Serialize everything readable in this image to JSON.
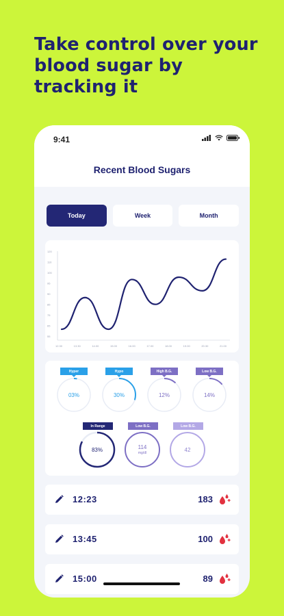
{
  "headline": "Take control over your blood sugar by tracking it",
  "status_bar": {
    "time": "9:41"
  },
  "nav": {
    "title": "Recent Blood Sugars"
  },
  "tabs": [
    {
      "label": "Today",
      "active": true
    },
    {
      "label": "Week",
      "active": false
    },
    {
      "label": "Month",
      "active": false
    }
  ],
  "chart_data": {
    "type": "line",
    "y_ticks": [
      "120",
      "110",
      "100",
      "95",
      "90",
      "85",
      "75",
      "65",
      "55"
    ],
    "x_ticks": [
      "12.30",
      "13.30",
      "14.00",
      "15.00",
      "16.00",
      "17.00",
      "18.00",
      "19.00",
      "20.30",
      "21.00"
    ],
    "series": [
      {
        "values": [
          56,
          84,
          56,
          100,
          78,
          102,
          90,
          118
        ],
        "color": "#1f2270"
      }
    ]
  },
  "stats_top": [
    {
      "label": "Hyper",
      "value": "03%",
      "color": "#2aa0e8",
      "fraction": 0.03
    },
    {
      "label": "Hypo",
      "value": "30%",
      "color": "#2aa0e8",
      "fraction": 0.3
    },
    {
      "label": "High B.G.",
      "value": "12%",
      "color": "#7d6fc4",
      "fraction": 0.12
    },
    {
      "label": "Low B.G.",
      "value": "14%",
      "color": "#7d6fc4",
      "fraction": 0.14
    }
  ],
  "stats_bottom": [
    {
      "label": "In Range",
      "value": "83%",
      "unit": "",
      "color": "#232775"
    },
    {
      "label": "Low B.G.",
      "value": "114",
      "unit": "mg/dl",
      "color": "#7d6fc4"
    },
    {
      "label": "Low B.G.",
      "value": "42",
      "unit": "",
      "color": "#b3a8e6"
    }
  ],
  "readings": [
    {
      "time": "12:23",
      "value": "183"
    },
    {
      "time": "13:45",
      "value": "100"
    },
    {
      "time": "15:00",
      "value": "89"
    }
  ],
  "colors": {
    "background": "#ccf53a",
    "primary": "#1f2270",
    "drop": "#e2313f"
  }
}
